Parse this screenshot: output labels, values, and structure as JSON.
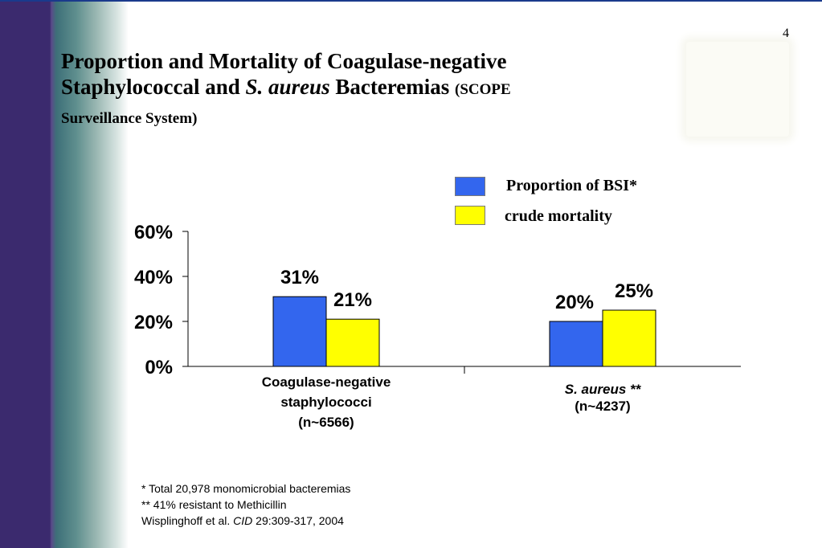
{
  "page_number": "4",
  "title": {
    "line1": "Proportion and Mortality of Coagulase-negative",
    "line2_pre": "Staphylococcal and ",
    "line2_italic": "S. aureus",
    "line2_post": " Bacteremias ",
    "paren_a": "(SCOPE",
    "paren_b": "Surveillance System)"
  },
  "colors": {
    "proportion": "#3366ee",
    "mortality": "#ffff00"
  },
  "chart_data": {
    "type": "bar",
    "categories": [
      "Coagulase-negative staphylococci (n~6566)",
      "S. aureus ** (n~4237)"
    ],
    "category_labels": [
      {
        "lines": [
          "Coagulase-negative",
          "staphylococci",
          "(n~6566)"
        ],
        "italic": false
      },
      {
        "lines": [
          "S. aureus **",
          "(n~4237)"
        ],
        "italic_first": true
      }
    ],
    "series": [
      {
        "name": "Proportion of BSI*",
        "values": [
          31,
          20
        ],
        "labels": [
          "31%",
          "20%"
        ]
      },
      {
        "name": "crude mortality",
        "values": [
          21,
          25
        ],
        "labels": [
          "21%",
          "25%"
        ]
      }
    ],
    "ylim": [
      0,
      60
    ],
    "yticks": [
      0,
      20,
      40,
      60
    ],
    "ytick_labels": [
      "0%",
      "20%",
      "40%",
      "60%"
    ],
    "grid": false,
    "legend_position": "top-right"
  },
  "footnotes": {
    "line1": "*  Total 20,978 monomicrobial bacteremias",
    "line2": "** 41% resistant to Methicillin",
    "line3_pre": "Wisplinghoff et al. ",
    "line3_italic": "CID",
    "line3_post": " 29:309-317, 2004"
  }
}
